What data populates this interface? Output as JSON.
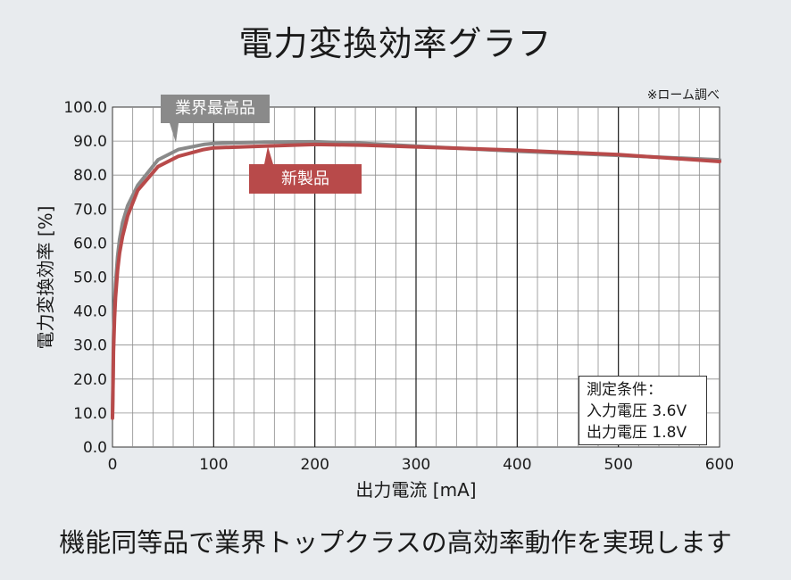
{
  "page": {
    "title": "電力変換効率グラフ",
    "footer": "機能同等品で業界トップクラスの高効率動作を実現します",
    "note": "※ローム調べ"
  },
  "conditions": {
    "heading": "測定条件：",
    "line1": "入力電圧 3.6V",
    "line2": "出力電圧 1.8V"
  },
  "colors": {
    "industry_best": "#8a8a8a",
    "new_product": "#b84a4a",
    "grid": "#8c8c8c",
    "grid_major": "#1a1a1a"
  },
  "chart_data": {
    "type": "line",
    "title": "電力変換効率グラフ",
    "xlabel": "出力電流 [mA]",
    "ylabel": "電力変換効率 [%]",
    "xlim": [
      0,
      600
    ],
    "ylim": [
      0,
      100
    ],
    "x_ticks": [
      "0",
      "100",
      "200",
      "300",
      "400",
      "500",
      "600"
    ],
    "y_ticks": [
      "0.0",
      "10.0",
      "20.0",
      "30.0",
      "40.0",
      "50.0",
      "60.0",
      "70.0",
      "80.0",
      "90.0",
      "100.0"
    ],
    "grid": true,
    "series": [
      {
        "name": "業界最高品",
        "color": "#8a8a8a",
        "x": [
          0,
          0.5,
          1,
          2,
          3,
          5,
          7,
          10,
          15,
          25,
          45,
          65,
          90,
          100,
          150,
          200,
          250,
          300,
          400,
          500,
          600
        ],
        "y": [
          9,
          20,
          32,
          42,
          48,
          56,
          61,
          66,
          71,
          77,
          84.5,
          87.5,
          89,
          89.3,
          89.7,
          89.8,
          89.3,
          88.5,
          87,
          85.8,
          84.5
        ]
      },
      {
        "name": "新製品",
        "color": "#b84a4a",
        "x": [
          0,
          0.5,
          1,
          2,
          3,
          5,
          7,
          10,
          15,
          25,
          45,
          65,
          90,
          100,
          150,
          200,
          250,
          300,
          400,
          500,
          600
        ],
        "y": [
          8.5,
          18,
          28,
          38,
          44,
          52,
          57,
          62,
          68,
          75.5,
          82.5,
          85.5,
          87.5,
          88,
          88.5,
          89,
          88.8,
          88.3,
          87.3,
          86,
          84
        ]
      }
    ]
  }
}
